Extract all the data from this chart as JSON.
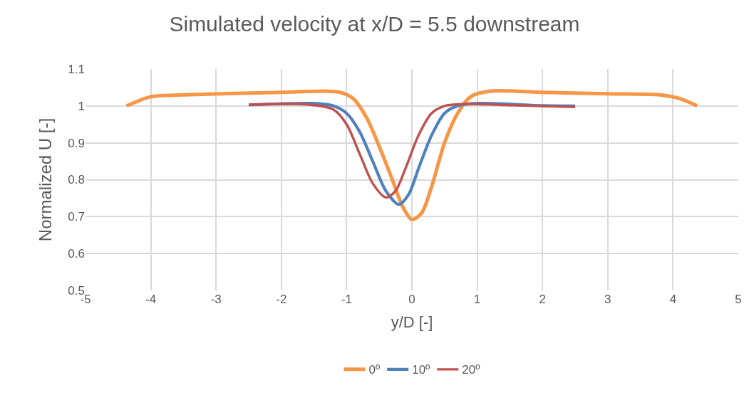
{
  "chart_data": {
    "type": "line",
    "title": "Simulated velocity at x/D = 5.5 downstream",
    "xlabel": "y/D [-]",
    "ylabel": "Normalized U [-]",
    "xlim": [
      -5,
      5
    ],
    "xticks": [
      -5,
      -4,
      -3,
      -2,
      -1,
      0,
      1,
      2,
      3,
      4,
      5
    ],
    "ylim": [
      0.5,
      1.1
    ],
    "yticks": [
      0.5,
      0.6,
      0.7,
      0.8,
      0.9,
      1,
      1.1
    ],
    "grid": true,
    "legend": "bottom",
    "marker": "none",
    "line_style": "solid",
    "series": [
      {
        "name": "0º",
        "color": "#f79646",
        "x": [
          -4.37,
          -4.0,
          -3.5,
          -2,
          -1.3,
          -1.1,
          -0.9,
          -0.7,
          -0.5,
          -0.3,
          -0.15,
          0,
          0.15,
          0.3,
          0.5,
          0.7,
          0.9,
          1.2,
          2,
          3,
          3.8,
          4.1,
          4.37
        ],
        "values": [
          1.0,
          1.025,
          1.03,
          1.037,
          1.04,
          1.037,
          1.02,
          0.97,
          0.89,
          0.8,
          0.73,
          0.692,
          0.71,
          0.78,
          0.9,
          0.98,
          1.025,
          1.04,
          1.037,
          1.033,
          1.03,
          1.02,
          1.0
        ]
      },
      {
        "name": "10º",
        "color": "#4f81bd",
        "x": [
          -2.5,
          -1.5,
          -1.2,
          -1.0,
          -0.8,
          -0.6,
          -0.4,
          -0.2,
          -0.05,
          0.1,
          0.3,
          0.5,
          0.7,
          1.0,
          2,
          2.5
        ],
        "values": [
          1.003,
          1.007,
          1.0,
          0.98,
          0.93,
          0.85,
          0.77,
          0.733,
          0.76,
          0.83,
          0.92,
          0.98,
          1.0,
          1.007,
          1.001,
          1.0
        ]
      },
      {
        "name": "20º",
        "color": "#c0504d",
        "x": [
          -2.5,
          -1.6,
          -1.2,
          -1.0,
          -0.8,
          -0.6,
          -0.4,
          -0.25,
          -0.1,
          0.1,
          0.3,
          0.5,
          0.8,
          1.5,
          2.5
        ],
        "values": [
          1.003,
          1.004,
          0.99,
          0.95,
          0.87,
          0.79,
          0.752,
          0.77,
          0.83,
          0.92,
          0.98,
          1.0,
          1.005,
          1.002,
          0.997
        ]
      }
    ]
  }
}
